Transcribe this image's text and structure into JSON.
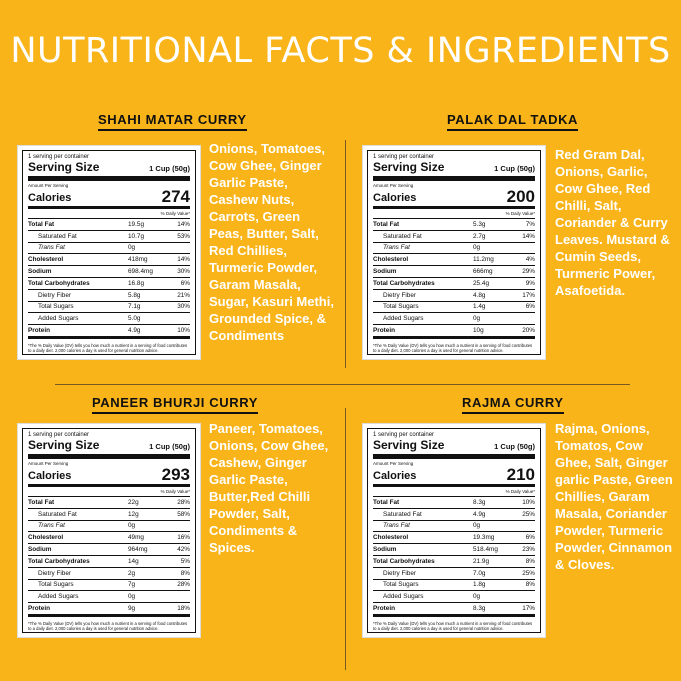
{
  "title": "NUTRITIONAL FACTS & INGREDIENTS",
  "footnote": "*The % Daily Value (DV) tells you how much a nutrient in a serving of food contributes to a daily diet. 2,000 calories a day is used for general nutrition advice.",
  "common": {
    "serving_per": "1 serving per container",
    "serving_size_label": "Serving Size",
    "serving_size_value": "1 Cup (50g)",
    "amount_per": "Amount Per Serving",
    "calories_label": "Calories",
    "daily_value_label": "% Daily Value*",
    "row_labels": [
      "Total Fat",
      "Saturated Fat",
      "Trans Fat",
      "Cholesterol",
      "Sodium",
      "Total Carbohydrates",
      "Dietry Fiber",
      "Total Sugars",
      "Added Sugars",
      "Protein"
    ]
  },
  "products": [
    {
      "name": "SHAHI MATAR CURRY",
      "calories": "274",
      "amounts": [
        "19.5g",
        "10.7g",
        "0g",
        "418mg",
        "698.4mg",
        "16.8g",
        "5.8g",
        "7.1g",
        "5.0g",
        "4.9g"
      ],
      "percents": [
        "14%",
        "53%",
        "",
        "14%",
        "30%",
        "6%",
        "21%",
        "30%",
        "",
        "10%"
      ],
      "ingredients": "Onions, Tomatoes, Cow Ghee, Ginger Garlic Paste, Cashew Nuts, Carrots, Green Peas, Butter, Salt, Red Chillies, Turmeric Powder, Garam Masala, Sugar, Kasuri Methi, Grounded Spice, & Condiments"
    },
    {
      "name": "PALAK DAL TADKA",
      "calories": "200",
      "amounts": [
        "5.3g",
        "2.7g",
        "0g",
        "11.2mg",
        "666mg",
        "25.4g",
        "4.8g",
        "1.4g",
        "0g",
        "10g"
      ],
      "percents": [
        "7%",
        "14%",
        "",
        "4%",
        "29%",
        "9%",
        "17%",
        "6%",
        "",
        "20%"
      ],
      "ingredients": "Red Gram Dal, Onions, Garlic, Cow Ghee, Red Chilli, Salt, Coriander & Curry Leaves. Mustard & Cumin Seeds, Turmeric Power, Asafoetida."
    },
    {
      "name": "PANEER BHURJI CURRY",
      "calories": "293",
      "amounts": [
        "22g",
        "12g",
        "0g",
        "49mg",
        "964mg",
        "14g",
        "2g",
        "7g",
        "0g",
        "9g"
      ],
      "percents": [
        "28%",
        "58%",
        "",
        "16%",
        "42%",
        "5%",
        "8%",
        "28%",
        "",
        "18%"
      ],
      "ingredients": "Paneer, Tomatoes, Onions, Cow Ghee, Cashew, Ginger Garlic Paste, Butter,Red Chilli Powder, Salt, Condiments & Spices."
    },
    {
      "name": "RAJMA CURRY",
      "calories": "210",
      "amounts": [
        "8.3g",
        "4.9g",
        "0g",
        "19.3mg",
        "518.4mg",
        "21.9g",
        "7.0g",
        "1.8g",
        "0g",
        "8.3g"
      ],
      "percents": [
        "10%",
        "25%",
        "",
        "6%",
        "23%",
        "8%",
        "25%",
        "8%",
        "",
        "17%"
      ],
      "ingredients": "Rajma, Onions, Tomatos, Cow Ghee, Salt, Ginger garlic Paste, Green Chillies, Garam Masala, Coriander Powder, Turmeric Powder, Cinnamon & Cloves."
    }
  ]
}
